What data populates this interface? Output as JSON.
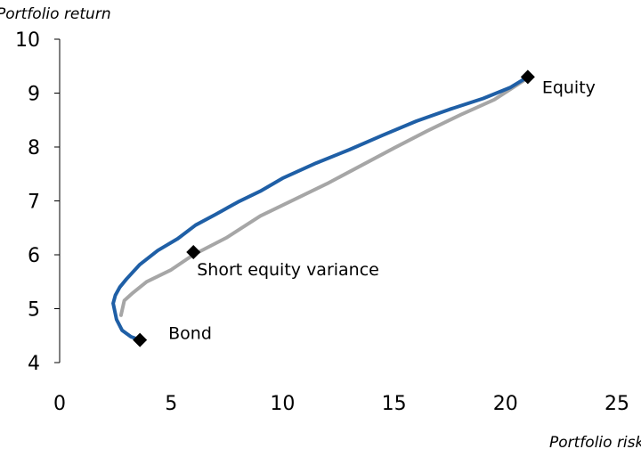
{
  "chart_data": {
    "type": "line",
    "title": "",
    "xlabel": "Portfolio risk",
    "ylabel": "Portfolio return",
    "xlim": [
      0,
      25
    ],
    "ylim": [
      4,
      10
    ],
    "x_ticks": [
      0,
      5,
      10,
      15,
      20,
      25
    ],
    "y_ticks": [
      4,
      5,
      6,
      7,
      8,
      9,
      10
    ],
    "grid": false,
    "legend": "none",
    "series": [
      {
        "color": "#1f5fa6",
        "points": [
          [
            3.6,
            4.42
          ],
          [
            3.2,
            4.48
          ],
          [
            2.8,
            4.6
          ],
          [
            2.55,
            4.8
          ],
          [
            2.4,
            5.1
          ],
          [
            2.5,
            5.25
          ],
          [
            2.7,
            5.4
          ],
          [
            3.0,
            5.55
          ],
          [
            3.6,
            5.82
          ],
          [
            4.4,
            6.08
          ],
          [
            5.3,
            6.3
          ],
          [
            6.1,
            6.55
          ],
          [
            7.0,
            6.75
          ],
          [
            8.0,
            6.98
          ],
          [
            9.0,
            7.18
          ],
          [
            10.0,
            7.42
          ],
          [
            11.5,
            7.7
          ],
          [
            13.0,
            7.95
          ],
          [
            14.5,
            8.22
          ],
          [
            16.0,
            8.48
          ],
          [
            17.5,
            8.7
          ],
          [
            19.0,
            8.9
          ],
          [
            20.2,
            9.1
          ],
          [
            21.0,
            9.3
          ]
        ]
      },
      {
        "color": "#a6a6a6",
        "points": [
          [
            2.75,
            4.88
          ],
          [
            2.9,
            5.15
          ],
          [
            3.3,
            5.3
          ],
          [
            3.9,
            5.5
          ],
          [
            5.0,
            5.72
          ],
          [
            6.0,
            6.0
          ],
          [
            7.5,
            6.32
          ],
          [
            9.0,
            6.72
          ],
          [
            10.5,
            7.02
          ],
          [
            12.0,
            7.32
          ],
          [
            13.5,
            7.65
          ],
          [
            15.0,
            7.98
          ],
          [
            16.5,
            8.3
          ],
          [
            18.0,
            8.6
          ],
          [
            19.5,
            8.88
          ],
          [
            21.0,
            9.28
          ]
        ]
      }
    ],
    "points": [
      {
        "label": "Equity",
        "x": 21.0,
        "y": 9.3
      },
      {
        "label": "Short equity variance",
        "x": 6.0,
        "y": 6.05
      },
      {
        "label": "Bond",
        "x": 3.6,
        "y": 4.42
      }
    ]
  }
}
